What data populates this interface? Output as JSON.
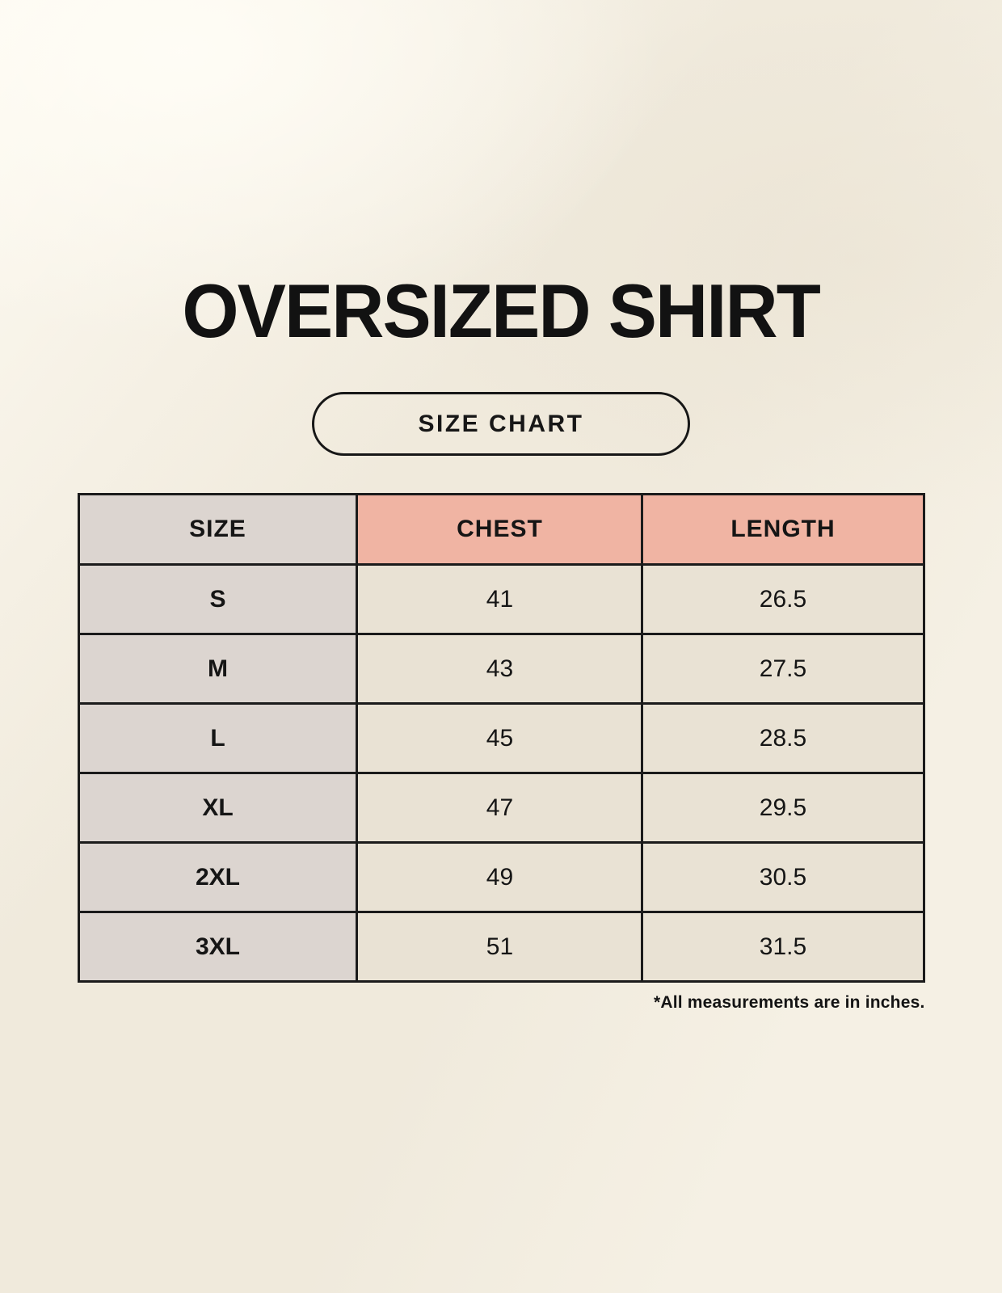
{
  "page": {
    "title": "OVERSIZED SHIRT",
    "badge_label": "SIZE CHART",
    "footnote": "*All measurements are in inches."
  },
  "chart_data": {
    "type": "table",
    "title": "OVERSIZED SHIRT",
    "subtitle": "SIZE CHART",
    "columns": [
      "SIZE",
      "CHEST",
      "LENGTH"
    ],
    "rows": [
      [
        "S",
        "41",
        "26.5"
      ],
      [
        "M",
        "43",
        "27.5"
      ],
      [
        "L",
        "45",
        "28.5"
      ],
      [
        "XL",
        "47",
        "29.5"
      ],
      [
        "2XL",
        "49",
        "30.5"
      ],
      [
        "3XL",
        "51",
        "31.5"
      ]
    ],
    "units_note": "*All measurements are in inches."
  },
  "colors": {
    "background": "#f5f0e4",
    "header_size_bg": "#dcd5d0",
    "header_accent_bg": "#f0b4a3",
    "size_column_bg": "#dcd5d0",
    "data_cell_bg": "#e9e2d4",
    "border": "#1b1b1b",
    "text": "#151515"
  }
}
